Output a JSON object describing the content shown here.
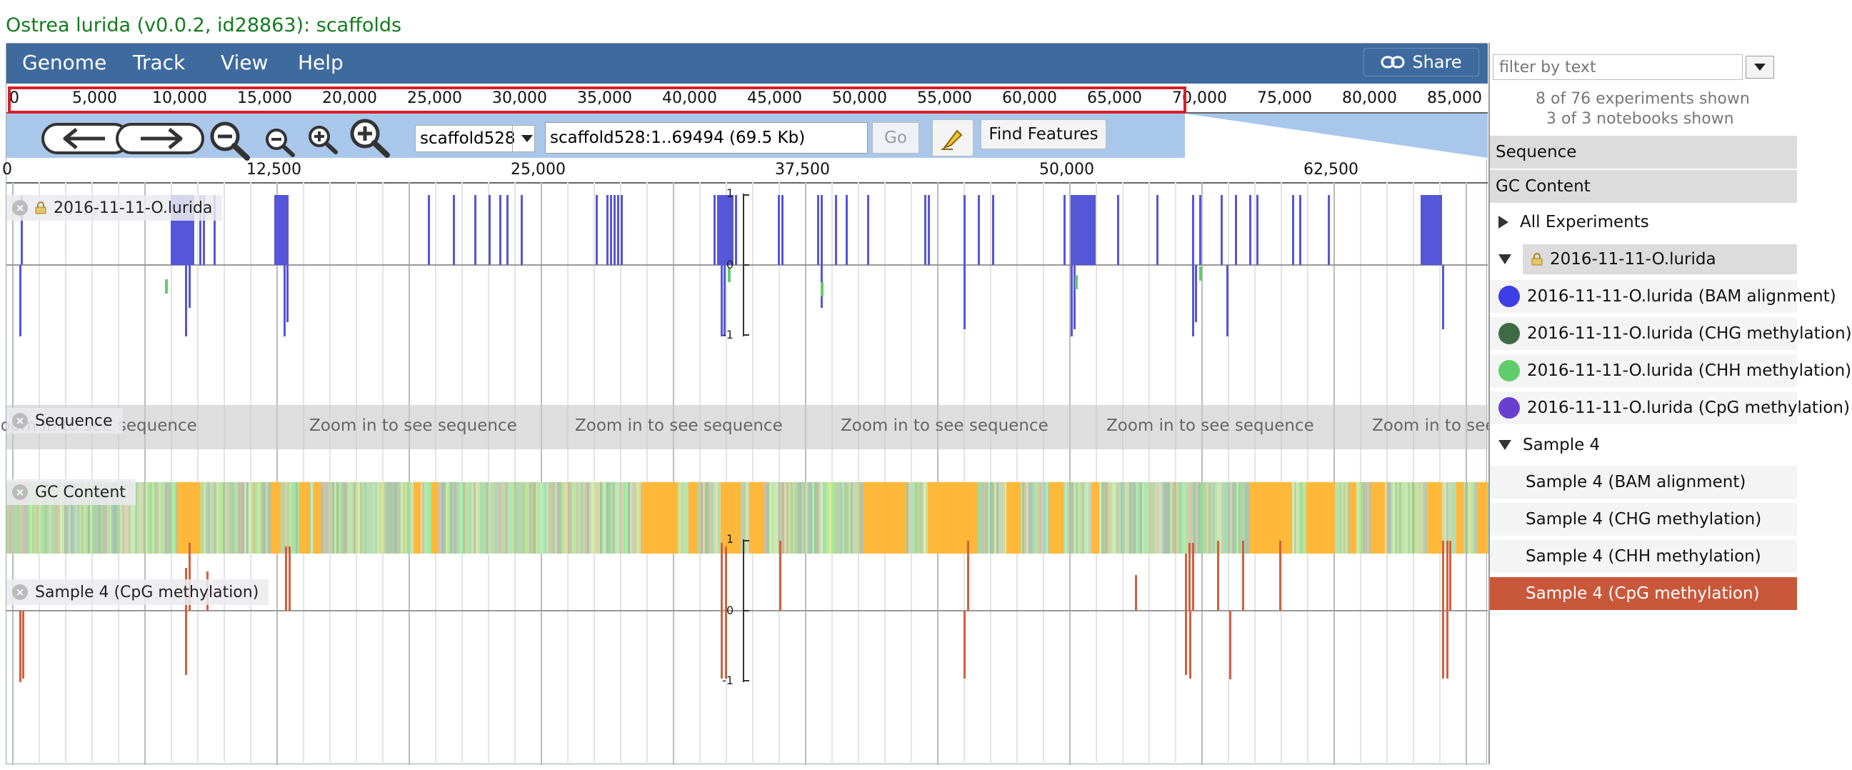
{
  "page_title": "Ostrea lurida (v0.0.2, id28863): scaffolds",
  "menu": {
    "items": [
      "Genome",
      "Track",
      "View",
      "Help"
    ],
    "share": "Share"
  },
  "overview": {
    "ticks": [
      "0",
      "5,000",
      "10,000",
      "15,000",
      "20,000",
      "25,000",
      "30,000",
      "35,000",
      "40,000",
      "45,000",
      "50,000",
      "55,000",
      "60,000",
      "65,000",
      "70,000",
      "75,000",
      "80,000",
      "85,000"
    ]
  },
  "navigation": {
    "refseq": "scaffold528",
    "location": "scaffold528:1..69494 (69.5 Kb)",
    "go": "Go",
    "find_features": "Find Features"
  },
  "ruler": {
    "ticks": [
      "0",
      "12,500",
      "25,000",
      "37,500",
      "50,000",
      "62,500"
    ]
  },
  "tracks": {
    "olurida": {
      "label": "2016-11-11-O.lurida",
      "axis": [
        "1",
        "0",
        "-1"
      ]
    },
    "sequence": {
      "label": "Sequence",
      "message": "Zoom in to see sequence"
    },
    "gc": {
      "label": "GC Content"
    },
    "sample4": {
      "label": "Sample 4 (CpG methylation)",
      "axis": [
        "1",
        "0",
        "-1"
      ]
    }
  },
  "right_pane": {
    "filter_placeholder": "filter by text",
    "experiments_shown": "8 of 76 experiments shown",
    "notebooks_shown": "3 of 3 notebooks shown",
    "categories": [
      "Sequence",
      "GC Content"
    ],
    "all_experiments": "All Experiments",
    "group1": {
      "label": "2016-11-11-O.lurida",
      "items": [
        {
          "label": "2016-11-11-O.lurida (BAM alignment)",
          "color": "#3d3ee6"
        },
        {
          "label": "2016-11-11-O.lurida (CHG methylation)",
          "color": "#3f6b44"
        },
        {
          "label": "2016-11-11-O.lurida (CHH methylation)",
          "color": "#5fce6a"
        },
        {
          "label": "2016-11-11-O.lurida (CpG methylation)",
          "color": "#6a3fd0"
        }
      ]
    },
    "group2": {
      "label": "Sample 4",
      "items": [
        {
          "label": "Sample 4 (BAM alignment)"
        },
        {
          "label": "Sample 4 (CHG methylation)"
        },
        {
          "label": "Sample 4 (CHH methylation)"
        },
        {
          "label": "Sample 4 (CpG methylation)",
          "selected": true
        }
      ]
    }
  },
  "colors": {
    "menubar": "#3e6a9e",
    "nav": "#a9c7ea",
    "olurida_bar": "#5656d8",
    "sample4_bar": "#d0603f",
    "gc_high": "#ffb83a",
    "gc_low": "#bfe8b8",
    "title_green": "#137c1d",
    "selected": "#c9573a"
  }
}
